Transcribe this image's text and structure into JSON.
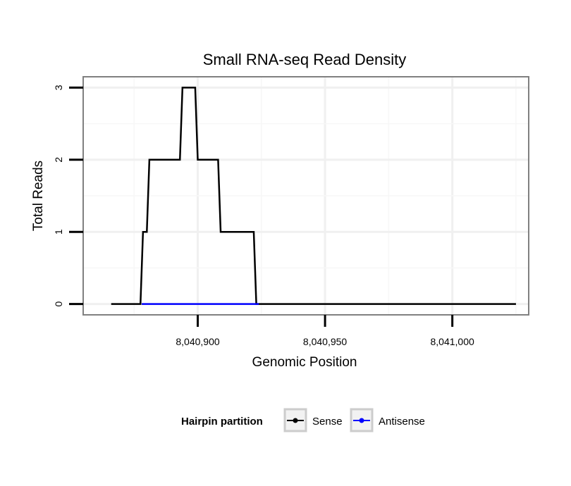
{
  "chart_data": {
    "type": "line",
    "title": "Small RNA-seq Read Density",
    "xlabel": "Genomic Position",
    "ylabel": "Total Reads",
    "xlim": [
      8040855,
      8041030
    ],
    "ylim": [
      -0.15,
      3.15
    ],
    "xticks": [
      8040900,
      8040950,
      8041000
    ],
    "xtick_labels": [
      "8,040,900",
      "8,040,950",
      "8,041,000"
    ],
    "yticks": [
      0,
      1,
      2,
      3
    ],
    "ytick_labels": [
      "0",
      "1",
      "2",
      "3"
    ],
    "grid": true,
    "legend": {
      "title": "Hairpin partition",
      "position": "bottom",
      "entries": [
        {
          "name": "Sense",
          "color": "#000000"
        },
        {
          "name": "Antisense",
          "color": "#0000ff"
        }
      ]
    },
    "series": [
      {
        "name": "Sense",
        "color": "#000000",
        "x": [
          8040866,
          8040877.5,
          8040878.5,
          8040880,
          8040881,
          8040893,
          8040894,
          8040899,
          8040900,
          8040908,
          8040909,
          8040922,
          8040923,
          8041025
        ],
        "y": [
          0,
          0,
          1,
          1,
          2,
          2,
          3,
          3,
          2,
          2,
          1,
          1,
          0,
          0
        ]
      },
      {
        "name": "Antisense",
        "color": "#0000ff",
        "x": [
          8040878,
          8040924
        ],
        "y": [
          0,
          0
        ]
      }
    ]
  }
}
